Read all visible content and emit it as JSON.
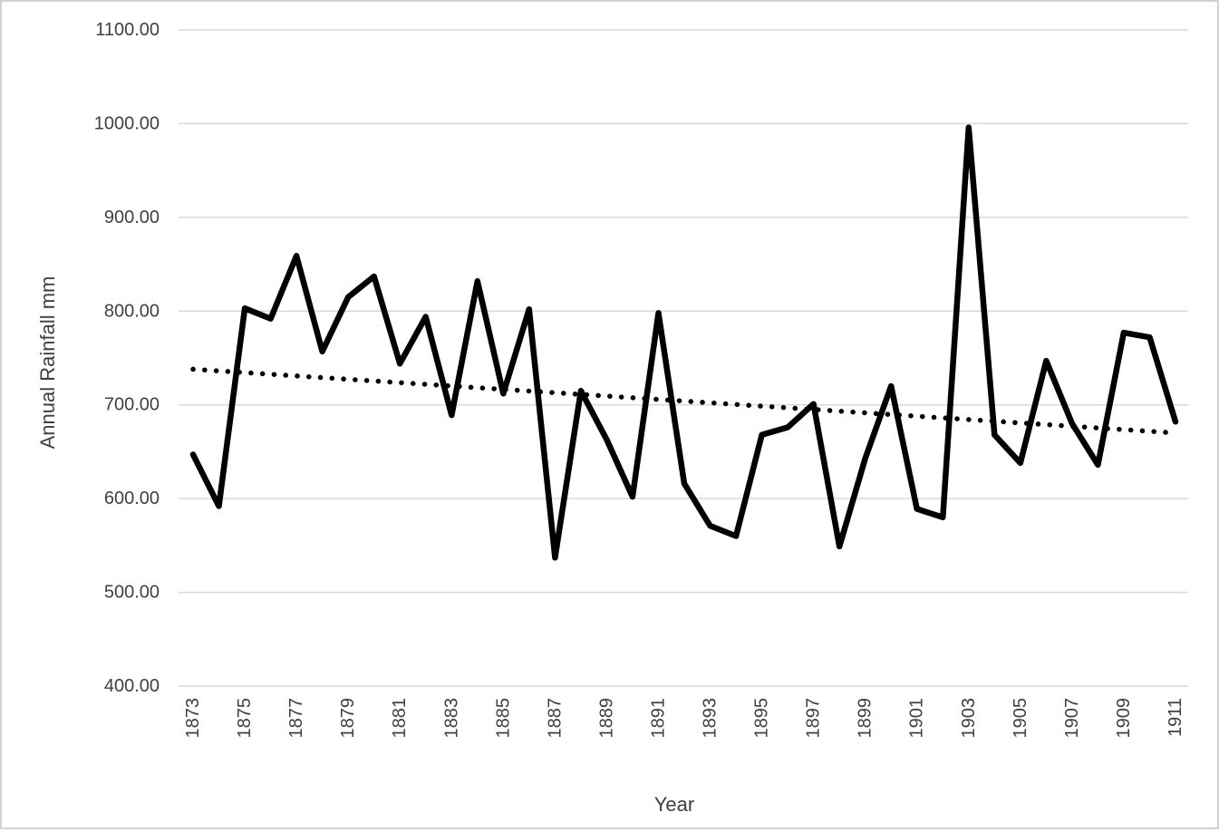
{
  "colors": {
    "series": "#000000",
    "trend": "#000000",
    "gridline": "#d9d9d9",
    "axis_text": "#404040",
    "frame_border": "#d2d2d2",
    "background": "#ffffff"
  },
  "chart_data": {
    "type": "line",
    "title": "",
    "xlabel": "Year",
    "ylabel": "Annual Rainfall mm",
    "ylim": [
      400,
      1100
    ],
    "xlim": [
      1873,
      1911
    ],
    "grid": true,
    "legend": "none",
    "y_ticks": [
      {
        "value": 400,
        "label": "400.00"
      },
      {
        "value": 500,
        "label": "500.00"
      },
      {
        "value": 600,
        "label": "600.00"
      },
      {
        "value": 700,
        "label": "700.00"
      },
      {
        "value": 800,
        "label": "800.00"
      },
      {
        "value": 900,
        "label": "900.00"
      },
      {
        "value": 1000,
        "label": "1000.00"
      },
      {
        "value": 1100,
        "label": "1100.00"
      }
    ],
    "x_tick_labels": [
      "1873",
      "1875",
      "1877",
      "1879",
      "1881",
      "1883",
      "1885",
      "1887",
      "1889",
      "1891",
      "1893",
      "1895",
      "1897",
      "1899",
      "1901",
      "1903",
      "1905",
      "1907",
      "1909",
      "1911"
    ],
    "x_tick_step": 2,
    "x": [
      1873,
      1874,
      1875,
      1876,
      1877,
      1878,
      1879,
      1880,
      1881,
      1882,
      1883,
      1884,
      1885,
      1886,
      1887,
      1888,
      1889,
      1890,
      1891,
      1892,
      1893,
      1894,
      1895,
      1896,
      1897,
      1898,
      1899,
      1900,
      1901,
      1902,
      1903,
      1904,
      1905,
      1906,
      1907,
      1908,
      1909,
      1910,
      1911
    ],
    "series": [
      {
        "name": "Annual Rainfall",
        "style": "solid",
        "color": "#000000",
        "values": [
          647,
          592,
          803,
          792,
          859,
          757,
          815,
          837,
          744,
          794,
          689,
          832,
          712,
          802,
          537,
          715,
          663,
          602,
          798,
          616,
          571,
          560,
          668,
          676,
          701,
          549,
          643,
          720,
          589,
          580,
          996,
          668,
          638,
          747,
          680,
          636,
          777,
          772,
          682
        ]
      }
    ],
    "trendline": {
      "name": "Linear trend",
      "style": "dotted",
      "color": "#000000",
      "start_year": 1873,
      "start_value": 738,
      "end_year": 1911,
      "end_value": 670
    }
  }
}
